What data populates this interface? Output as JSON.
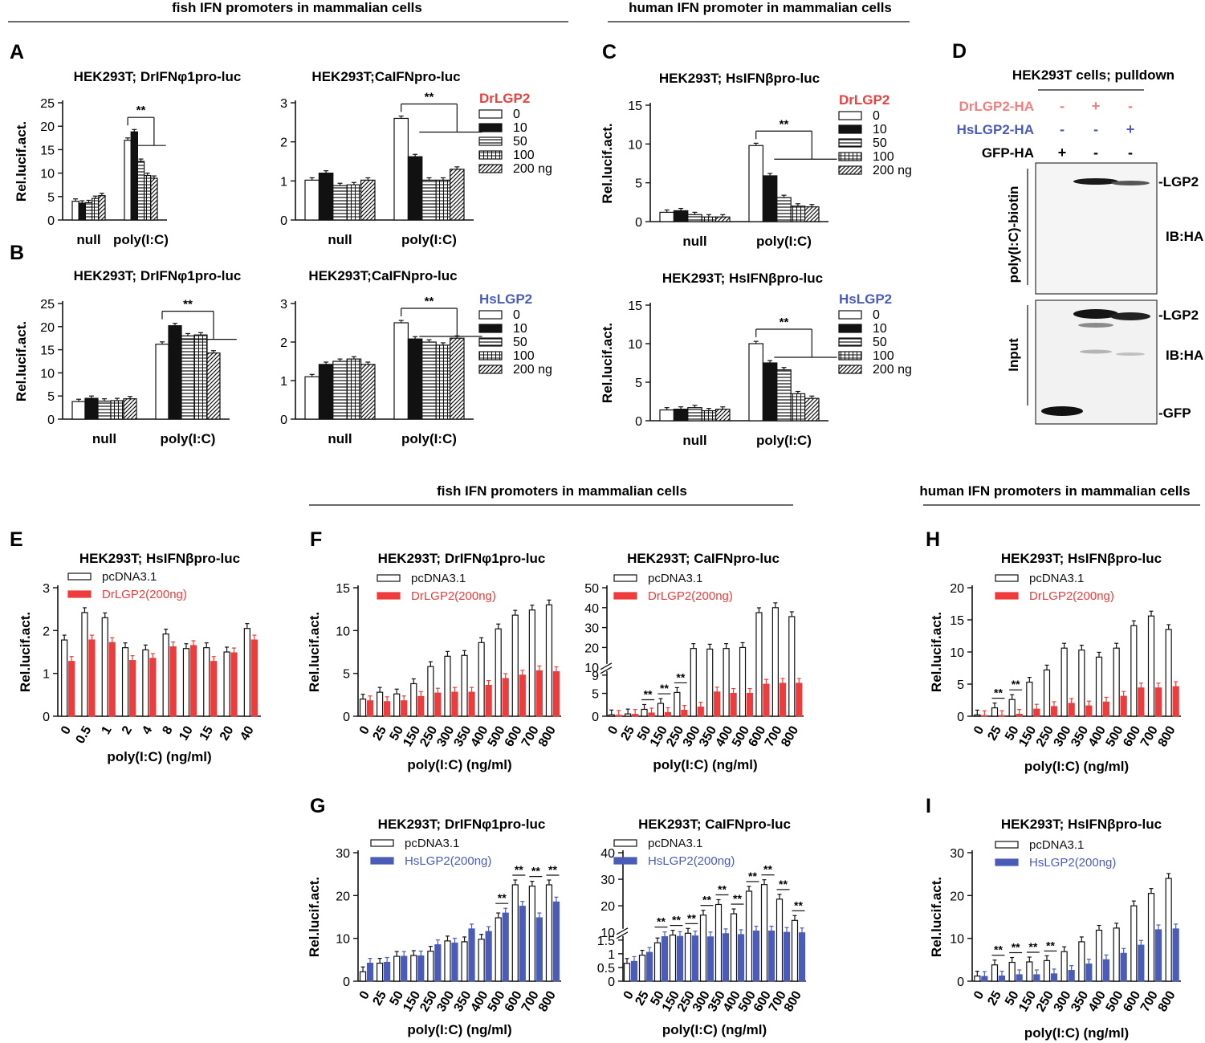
{
  "section_headers": {
    "top_fish": "fish IFN promoters  in mammalian cells",
    "top_human": "human IFN promoter  in mammalian cells",
    "mid_fish": "fish IFN promoters  in mammalian cells",
    "mid_human": "human IFN promoters  in mammalian cells"
  },
  "dose_legends": {
    "dr": {
      "title": "DrLGP2",
      "title_color": "#e8423f",
      "items": [
        "0",
        "10",
        "50",
        "100",
        "200 ng"
      ]
    },
    "hs": {
      "title": "HsLGP2",
      "title_color": "#4a5cb8",
      "items": [
        "0",
        "10",
        "50",
        "100",
        "200 ng"
      ]
    }
  },
  "western_blot": {
    "panel_letter": "D",
    "title": "HEK293T cells; pulldown",
    "rows": [
      {
        "label": "DrLGP2-HA",
        "color": "#f08080",
        "signs": [
          "-",
          "+",
          "-"
        ]
      },
      {
        "label": "HsLGP2-HA",
        "color": "#4a5cb8",
        "signs": [
          "-",
          "-",
          "+"
        ]
      },
      {
        "label": "GFP-HA",
        "color": "#111111",
        "signs": [
          "+",
          "-",
          "-"
        ]
      }
    ],
    "pulldown_label": "poly(I:C)-biotin",
    "input_label": "Input",
    "band_labels": {
      "lgp2_top": "-LGP2",
      "ib_top": "IB:HA",
      "lgp2_bottom": "-LGP2",
      "ib_bottom": "IB:HA",
      "gfp": "-GFP"
    }
  },
  "chart_data": [
    {
      "id": "A1",
      "panel_letter": "A",
      "type": "bar",
      "title": "HEK293T; DrIFNφ1pro-luc",
      "ylabel": "Rel.lucif.act.",
      "ylim": [
        0,
        25
      ],
      "yticks": [
        0,
        5,
        10,
        15,
        20,
        25
      ],
      "categories": [
        "null",
        "poly(I:C)"
      ],
      "series": [
        {
          "name": "0",
          "values": [
            4.0,
            17.0
          ]
        },
        {
          "name": "10",
          "values": [
            3.6,
            18.8
          ]
        },
        {
          "name": "50",
          "values": [
            3.7,
            12.5
          ]
        },
        {
          "name": "100",
          "values": [
            4.6,
            9.5
          ]
        },
        {
          "name": "200 ng",
          "values": [
            5.2,
            8.9
          ]
        }
      ],
      "significance": "**"
    },
    {
      "id": "A2",
      "type": "bar",
      "title": "HEK293T;CaIFNpro-luc",
      "ylabel": "",
      "legend": "dr",
      "ylim": [
        0,
        3
      ],
      "yticks": [
        0,
        1,
        2,
        3
      ],
      "categories": [
        "null",
        "poly(I:C)"
      ],
      "series": [
        {
          "name": "0",
          "values": [
            1.02,
            2.6
          ]
        },
        {
          "name": "10",
          "values": [
            1.2,
            1.62
          ]
        },
        {
          "name": "50",
          "values": [
            0.88,
            1.02
          ]
        },
        {
          "name": "100",
          "values": [
            0.9,
            1.02
          ]
        },
        {
          "name": "200 ng",
          "values": [
            1.02,
            1.3
          ]
        }
      ],
      "significance": "**"
    },
    {
      "id": "B1",
      "panel_letter": "B",
      "type": "bar",
      "title": "HEK293T; DrIFNφ1pro-luc",
      "ylabel": "Rel.lucif.act.",
      "ylim": [
        0,
        25
      ],
      "yticks": [
        0,
        5,
        10,
        15,
        20,
        25
      ],
      "categories": [
        "null",
        "poly(I:C)"
      ],
      "series": [
        {
          "name": "0",
          "values": [
            3.8,
            16.2
          ]
        },
        {
          "name": "10",
          "values": [
            4.5,
            20.2
          ]
        },
        {
          "name": "50",
          "values": [
            3.9,
            18.0
          ]
        },
        {
          "name": "100",
          "values": [
            4.0,
            18.2
          ]
        },
        {
          "name": "200 ng",
          "values": [
            4.4,
            14.3
          ]
        }
      ],
      "significance": "**"
    },
    {
      "id": "B2",
      "type": "bar",
      "title": "HEK293T;CaIFNpro-luc",
      "ylabel": "",
      "legend": "hs",
      "ylim": [
        0,
        3
      ],
      "yticks": [
        0,
        1,
        2,
        3
      ],
      "categories": [
        "null",
        "poly(I:C)"
      ],
      "series": [
        {
          "name": "0",
          "values": [
            1.1,
            2.5
          ]
        },
        {
          "name": "10",
          "values": [
            1.42,
            2.08
          ]
        },
        {
          "name": "50",
          "values": [
            1.5,
            2.0
          ]
        },
        {
          "name": "100",
          "values": [
            1.56,
            1.92
          ]
        },
        {
          "name": "200 ng",
          "values": [
            1.42,
            2.1
          ]
        }
      ],
      "significance": "**"
    },
    {
      "id": "C1",
      "panel_letter": "C",
      "type": "bar",
      "title": "HEK293T; HsIFNβpro-luc",
      "ylabel": "Rel.lucif.act.",
      "legend": "dr",
      "ylim": [
        0,
        15
      ],
      "yticks": [
        0,
        5,
        10,
        15
      ],
      "categories": [
        "null",
        "poly(I:C)"
      ],
      "series": [
        {
          "name": "0",
          "values": [
            1.2,
            9.8
          ]
        },
        {
          "name": "10",
          "values": [
            1.4,
            5.9
          ]
        },
        {
          "name": "50",
          "values": [
            0.9,
            3.1
          ]
        },
        {
          "name": "100",
          "values": [
            0.6,
            2.0
          ]
        },
        {
          "name": "200 ng",
          "values": [
            0.6,
            1.9
          ]
        }
      ],
      "significance": "**"
    },
    {
      "id": "C2",
      "type": "bar",
      "title": "HEK293T; HsIFNβpro-luc",
      "ylabel": "Rel.lucif.act.",
      "legend": "hs",
      "ylim": [
        0,
        15
      ],
      "yticks": [
        0,
        5,
        10,
        15
      ],
      "categories": [
        "null",
        "poly(I:C)"
      ],
      "series": [
        {
          "name": "0",
          "values": [
            1.4,
            10.0
          ]
        },
        {
          "name": "10",
          "values": [
            1.5,
            7.5
          ]
        },
        {
          "name": "50",
          "values": [
            1.7,
            6.6
          ]
        },
        {
          "name": "100",
          "values": [
            1.3,
            3.5
          ]
        },
        {
          "name": "200 ng",
          "values": [
            1.5,
            2.9
          ]
        }
      ],
      "significance": "**"
    },
    {
      "id": "E",
      "panel_letter": "E",
      "type": "bar",
      "title": "HEK293T; HsIFNβpro-luc",
      "ylabel": "Rel.lucif.act.",
      "xlabel": "poly(I:C) (ng/ml)",
      "ylim": [
        0,
        3
      ],
      "yticks": [
        0,
        1,
        2,
        3
      ],
      "categories": [
        "0",
        "0.5",
        "1",
        "2",
        "4",
        "8",
        "10",
        "15",
        "20",
        "40"
      ],
      "series": [
        {
          "name": "pcDNA3.1",
          "values": [
            1.78,
            2.42,
            2.3,
            1.6,
            1.55,
            1.92,
            1.58,
            1.6,
            1.5,
            2.05
          ]
        },
        {
          "name": "DrLGP2(200ng)",
          "color": "#ee3b3b",
          "values": [
            1.28,
            1.78,
            1.72,
            1.3,
            1.35,
            1.62,
            1.65,
            1.28,
            1.48,
            1.78
          ]
        }
      ],
      "significance_marks": []
    },
    {
      "id": "F1",
      "panel_letter": "F",
      "type": "bar",
      "title": "HEK293T; DrIFNφ1pro-luc",
      "ylabel": "Rel.lucif.act.",
      "xlabel": "poly(I:C) (ng/ml)",
      "ylim": [
        0,
        15
      ],
      "yticks": [
        0,
        5,
        10,
        15
      ],
      "categories": [
        "0",
        "25",
        "50",
        "150",
        "250",
        "300",
        "350",
        "400",
        "500",
        "600",
        "700",
        "800"
      ],
      "series": [
        {
          "name": "pcDNA3.1",
          "values": [
            2.0,
            2.8,
            2.6,
            3.8,
            5.8,
            7.0,
            7.1,
            8.6,
            10.2,
            11.8,
            12.4,
            13.0
          ]
        },
        {
          "name": "DrLGP2(200ng)",
          "color": "#ee3b3b",
          "values": [
            1.8,
            1.7,
            1.8,
            2.3,
            2.7,
            2.8,
            2.8,
            3.6,
            4.4,
            4.8,
            5.3,
            5.2
          ]
        }
      ],
      "significance_marks": []
    },
    {
      "id": "F2",
      "type": "bar",
      "title": "HEK293T; CaIFNpro-luc",
      "ylabel": "",
      "xlabel": "poly(I:C) (ng/ml)",
      "ylim": [
        0,
        50
      ],
      "yticks_lower": [
        0,
        5,
        9
      ],
      "yticks_upper": [
        10,
        20,
        30,
        40,
        50
      ],
      "axis_break": [
        9,
        10
      ],
      "categories": [
        "0",
        "25",
        "50",
        "150",
        "250",
        "300",
        "350",
        "400",
        "500",
        "600",
        "700",
        "800"
      ],
      "series": [
        {
          "name": "pcDNA3.1",
          "values": [
            0.3,
            0.5,
            1.5,
            2.8,
            5.2,
            19.5,
            19.2,
            19.5,
            20.0,
            37.5,
            40.0,
            35.5
          ]
        },
        {
          "name": "DrLGP2(200ng)",
          "color": "#ee3b3b",
          "values": [
            0.2,
            0.4,
            0.7,
            0.8,
            1.3,
            2.0,
            5.3,
            5.0,
            5.0,
            7.0,
            7.2,
            7.2
          ]
        }
      ],
      "significance_marks": [
        2,
        3,
        4
      ]
    },
    {
      "id": "G1",
      "panel_letter": "G",
      "type": "bar",
      "title": "HEK293T; DrIFNφ1pro-luc",
      "ylabel": "Rel.lucif.act.",
      "xlabel": "poly(I:C) (ng/ml)",
      "ylim": [
        0,
        30
      ],
      "yticks": [
        0,
        10,
        20,
        30
      ],
      "categories": [
        "0",
        "25",
        "50",
        "150",
        "250",
        "300",
        "350",
        "400",
        "500",
        "600",
        "700",
        "800"
      ],
      "series": [
        {
          "name": "pcDNA3.1",
          "values": [
            2.2,
            4.2,
            5.8,
            6.0,
            7.0,
            9.4,
            9.2,
            9.8,
            14.8,
            22.5,
            22.2,
            22.5
          ]
        },
        {
          "name": "HsLGP2(200ng)",
          "color": "#4a5cb8",
          "values": [
            4.2,
            4.4,
            5.8,
            5.9,
            8.5,
            8.9,
            12.2,
            11.6,
            15.9,
            17.5,
            14.8,
            18.5
          ]
        }
      ],
      "significance_marks": [
        8,
        9,
        10,
        11
      ]
    },
    {
      "id": "G2",
      "type": "bar",
      "title": "HEK293T; CaIFNpro-luc",
      "ylabel": "",
      "xlabel": "poly(I:C) (ng/ml)",
      "ylim": [
        0,
        40
      ],
      "yticks_lower": [
        0.0,
        0.5,
        1.0,
        1.5
      ],
      "yticks_upper": [
        10,
        20,
        30,
        40
      ],
      "axis_break": [
        1.5,
        5
      ],
      "categories": [
        "0",
        "25",
        "50",
        "150",
        "250",
        "300",
        "350",
        "400",
        "500",
        "600",
        "700",
        "800"
      ],
      "series": [
        {
          "name": "pcDNA3.1",
          "values": [
            0.65,
            0.95,
            1.4,
            7.0,
            9.0,
            16.5,
            20.5,
            17.0,
            25.5,
            28.0,
            22.5,
            14.5
          ]
        },
        {
          "name": "HsLGP2(200ng)",
          "color": "#4a5cb8",
          "values": [
            0.72,
            1.05,
            5.2,
            5.5,
            6.0,
            5.0,
            8.5,
            7.5,
            10.5,
            10.5,
            10.0,
            9.5
          ]
        }
      ],
      "significance_marks": [
        2,
        3,
        4,
        5,
        6,
        7,
        8,
        9,
        10,
        11
      ]
    },
    {
      "id": "H",
      "panel_letter": "H",
      "type": "bar",
      "title": "HEK293T; HsIFNβpro-luc",
      "ylabel": "Rel.lucif.act.",
      "xlabel": "poly(I:C) (ng/ml)",
      "ylim": [
        0,
        20
      ],
      "yticks": [
        0,
        5,
        10,
        15,
        20
      ],
      "categories": [
        "0",
        "25",
        "50",
        "150",
        "250",
        "300",
        "350",
        "400",
        "500",
        "600",
        "700",
        "800"
      ],
      "series": [
        {
          "name": "pcDNA3.1",
          "values": [
            0.2,
            1.3,
            2.6,
            5.3,
            7.2,
            10.6,
            10.3,
            9.2,
            10.6,
            14.1,
            15.6,
            13.5
          ]
        },
        {
          "name": "DrLGP2(200ng)",
          "color": "#ee3b3b",
          "values": [
            0.1,
            0.1,
            0.3,
            1.1,
            1.5,
            2.0,
            1.6,
            2.2,
            3.1,
            4.4,
            4.4,
            4.6
          ]
        }
      ],
      "significance_marks": [
        1,
        2
      ]
    },
    {
      "id": "I",
      "panel_letter": "I",
      "type": "bar",
      "title": "HEK293T; HsIFNβpro-luc",
      "ylabel": "Rel.lucif.act.",
      "xlabel": "poly(I:C) (ng/ml)",
      "ylim": [
        0,
        30
      ],
      "yticks": [
        0,
        10,
        20,
        30
      ],
      "categories": [
        "0",
        "25",
        "50",
        "150",
        "250",
        "300",
        "350",
        "400",
        "500",
        "600",
        "700",
        "800"
      ],
      "series": [
        {
          "name": "pcDNA3.1",
          "values": [
            1.2,
            3.8,
            4.4,
            4.5,
            4.8,
            6.9,
            9.2,
            11.9,
            12.4,
            17.6,
            20.5,
            24.0
          ]
        },
        {
          "name": "HsLGP2(200ng)",
          "color": "#4a5cb8",
          "values": [
            1.1,
            1.2,
            1.5,
            1.5,
            1.7,
            2.5,
            4.0,
            5.0,
            6.5,
            8.4,
            12.0,
            12.2
          ]
        }
      ],
      "significance_marks": [
        1,
        2,
        3,
        4
      ]
    }
  ]
}
